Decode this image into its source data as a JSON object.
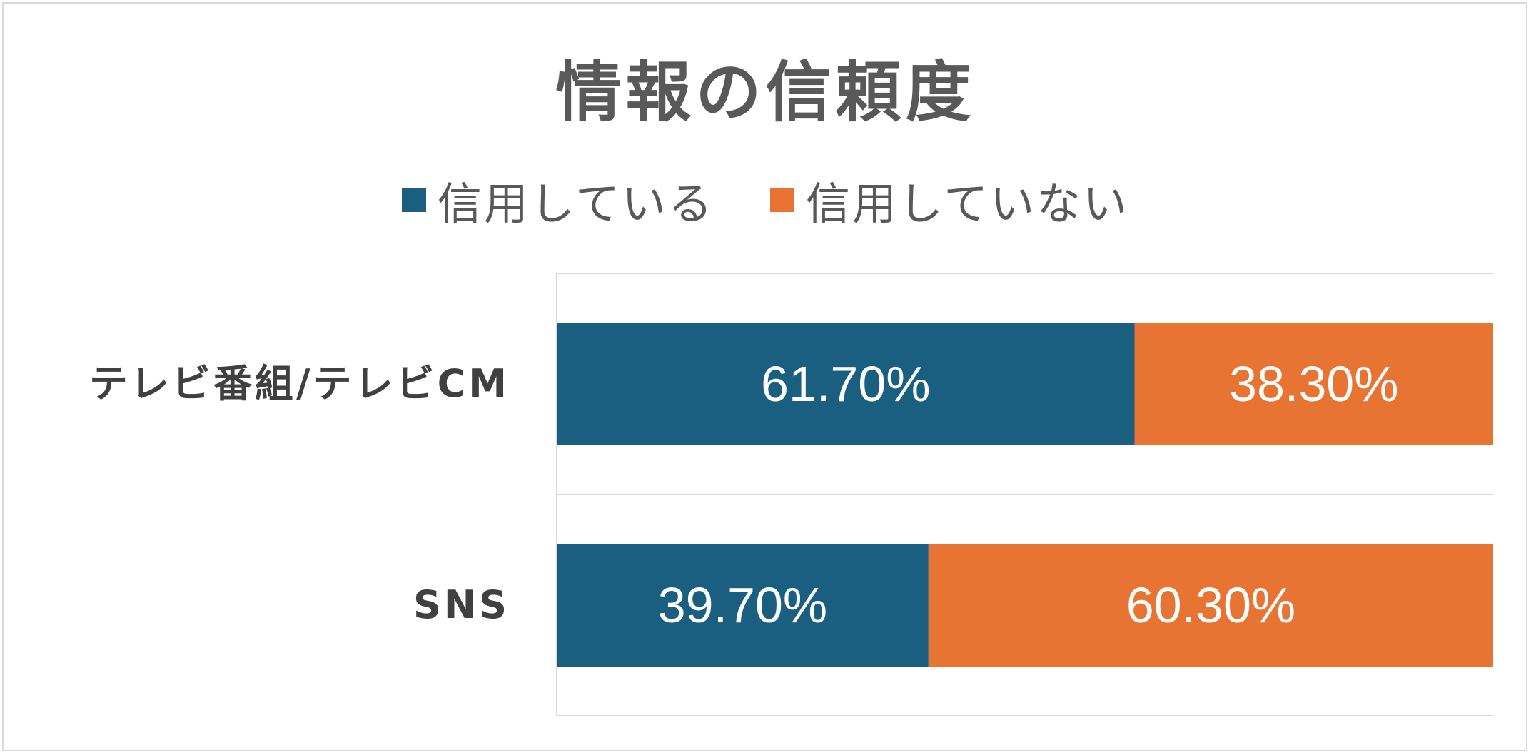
{
  "chart_data": {
    "type": "bar",
    "orientation": "horizontal",
    "stacked": true,
    "title": "情報の信頼度",
    "categories": [
      "テレビ番組/テレビCM",
      "SNS"
    ],
    "series": [
      {
        "name": "信用している",
        "values": [
          61.7,
          39.7
        ],
        "labels": [
          "61.70%",
          "39.70%"
        ],
        "color": "#1a5f80"
      },
      {
        "name": "信用していない",
        "values": [
          38.3,
          60.3
        ],
        "labels": [
          "38.30%",
          "60.30%"
        ],
        "color": "#e87434"
      }
    ],
    "xlim": [
      0,
      100
    ],
    "grid": true,
    "legend_position": "top"
  }
}
